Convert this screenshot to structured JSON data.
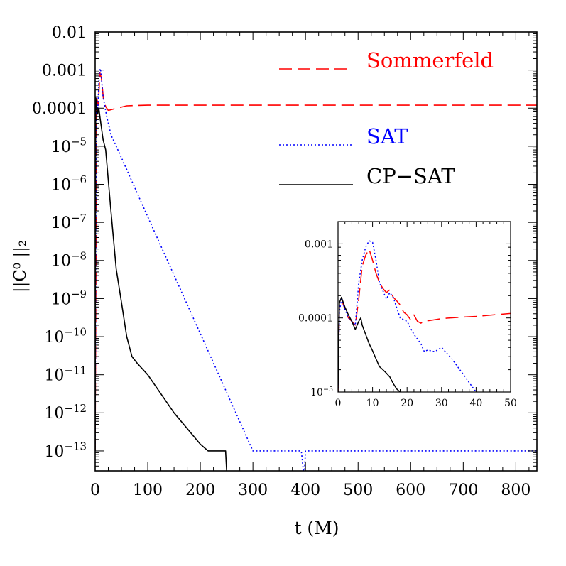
{
  "chart_data": [
    {
      "type": "line",
      "title": "",
      "xlabel": "t (M)",
      "ylabel": "||C⁰ ||₂",
      "xlim": [
        0,
        840
      ],
      "ylim": [
        3e-14,
        0.01
      ],
      "yscale": "log",
      "grid": false,
      "legend_placement": "top-right",
      "x_ticks": [
        0,
        100,
        200,
        300,
        400,
        500,
        600,
        700,
        800
      ],
      "y_ticks": [
        {
          "value": 0.01,
          "label": "0.01"
        },
        {
          "value": 0.001,
          "label": "0.001"
        },
        {
          "value": 0.0001,
          "label": "0.0001"
        },
        {
          "value": 1e-05,
          "label": "10",
          "exp": "−5"
        },
        {
          "value": 1e-06,
          "label": "10",
          "exp": "−6"
        },
        {
          "value": 1e-07,
          "label": "10",
          "exp": "−7"
        },
        {
          "value": 1e-08,
          "label": "10",
          "exp": "−8"
        },
        {
          "value": 1e-09,
          "label": "10",
          "exp": "−9"
        },
        {
          "value": 1e-10,
          "label": "10",
          "exp": "−10"
        },
        {
          "value": 1e-11,
          "label": "10",
          "exp": "−11"
        },
        {
          "value": 1e-12,
          "label": "10",
          "exp": "−12"
        },
        {
          "value": 1e-13,
          "label": "10",
          "exp": "−13"
        }
      ],
      "series": [
        {
          "name": "Sommerfeld",
          "color": "#ff0000",
          "style": "dashed",
          "x": [
            0,
            3,
            6,
            9,
            12,
            16,
            20,
            25,
            35,
            60,
            100,
            200,
            300,
            400,
            500,
            600,
            700,
            800,
            840
          ],
          "y": [
            1e-13,
            0.00018,
            0.00012,
            0.00085,
            0.0006,
            0.00016,
            0.00011,
            8.7e-05,
            9.5e-05,
            0.000115,
            0.00012,
            0.00012,
            0.00012,
            0.00012,
            0.00012,
            0.00012,
            0.00012,
            0.00012,
            0.00012
          ]
        },
        {
          "name": "SAT",
          "color": "#0000ff",
          "style": "dotted",
          "x": [
            0,
            2,
            5,
            8,
            10,
            12,
            15,
            18,
            22,
            26,
            30,
            40,
            50,
            100,
            200,
            300,
            380,
            392,
            396,
            398,
            400,
            402,
            500,
            600,
            700,
            800,
            840
          ],
          "y": [
            1e-13,
            0.00015,
            0.0001,
            0.0009,
            0.0011,
            0.0006,
            0.0002,
            0.00012,
            6e-05,
            3.5e-05,
            2e-05,
            1e-05,
            5e-06,
            1.4e-07,
            1.2e-10,
            1e-13,
            1e-13,
            1e-13,
            3e-14,
            3e-14,
            1e-13,
            1e-13,
            1e-13,
            1e-13,
            1e-13,
            1e-13,
            1e-13
          ]
        },
        {
          "name": "CP−SAT",
          "color": "#000000",
          "style": "solid",
          "x": [
            0,
            1,
            3,
            5,
            7,
            9,
            12,
            15,
            20,
            30,
            40,
            50,
            60,
            70,
            80,
            100,
            150,
            200,
            215,
            230,
            248,
            250
          ],
          "y": [
            1e-13,
            0.00019,
            0.00011,
            7e-05,
            0.0001,
            6e-05,
            3e-05,
            1.5e-05,
            8e-06,
            2e-07,
            6e-09,
            8e-10,
            1e-10,
            3e-11,
            2e-11,
            1e-11,
            1e-12,
            1.5e-13,
            1e-13,
            1e-13,
            1e-13,
            3e-14
          ]
        }
      ]
    },
    {
      "type": "line",
      "title": "",
      "xlabel": "",
      "ylabel": "",
      "xlim": [
        0,
        50
      ],
      "ylim": [
        1e-05,
        0.002
      ],
      "yscale": "log",
      "grid": false,
      "legend_placement": "",
      "x_ticks": [
        0,
        10,
        20,
        30,
        40,
        50
      ],
      "y_ticks": [
        {
          "value": 0.001,
          "label": "0.001"
        },
        {
          "value": 0.0001,
          "label": "0.0001"
        },
        {
          "value": 1e-05,
          "label": "10",
          "exp": "−5"
        }
      ],
      "series": [
        {
          "name": "Sommerfeld",
          "color": "#ff0000",
          "style": "dashed",
          "x": [
            0,
            0.4,
            1,
            2,
            3,
            4,
            5,
            6,
            7,
            8,
            9,
            10,
            11,
            12,
            13,
            14,
            15,
            16,
            17,
            18,
            19,
            20,
            21,
            22,
            23,
            24,
            25,
            27,
            30,
            35,
            40,
            45,
            50
          ],
          "y": [
            1e-05,
            0.00015,
            0.00018,
            0.00013,
            0.0001,
            9e-05,
            8e-05,
            0.00018,
            0.0005,
            0.0007,
            0.00085,
            0.0006,
            0.0004,
            0.0003,
            0.00025,
            0.00022,
            0.00024,
            0.00019,
            0.00017,
            0.00015,
            0.00012,
            0.00011,
            9.5e-05,
            0.00011,
            9e-05,
            8.5e-05,
            9e-05,
            9.3e-05,
            9.8e-05,
            0.000102,
            0.000105,
            0.00011,
            0.000115
          ]
        },
        {
          "name": "SAT",
          "color": "#0000ff",
          "style": "dotted",
          "x": [
            0,
            0.4,
            1,
            2,
            3,
            4,
            5,
            6,
            7,
            8,
            9,
            10,
            11,
            12,
            14,
            15,
            16,
            18,
            20,
            22,
            24,
            25,
            26,
            28,
            30,
            33,
            36,
            40
          ],
          "y": [
            1e-05,
            0.00012,
            0.00018,
            0.00013,
            0.0001,
            9e-05,
            8e-05,
            0.0003,
            0.0006,
            0.0009,
            0.0011,
            0.00105,
            0.0006,
            0.0003,
            0.00018,
            0.00022,
            0.00019,
            0.0001,
            9e-05,
            6e-05,
            4.5e-05,
            3.5e-05,
            3.7e-05,
            3.5e-05,
            4e-05,
            2.8e-05,
            1.8e-05,
            1e-05
          ]
        },
        {
          "name": "CP−SAT",
          "color": "#000000",
          "style": "solid",
          "x": [
            0,
            0.4,
            1,
            2,
            3,
            4,
            5,
            6,
            6.6,
            7,
            8,
            9,
            10,
            11,
            12,
            13,
            14,
            15,
            16,
            17,
            18
          ],
          "y": [
            1e-05,
            0.00016,
            0.00019,
            0.00014,
            0.00011,
            9e-05,
            7e-05,
            9e-05,
            0.0001,
            8e-05,
            6e-05,
            4.5e-05,
            3.6e-05,
            2.8e-05,
            2.2e-05,
            2e-05,
            1.8e-05,
            1.6e-05,
            1.3e-05,
            1.1e-05,
            1e-05
          ]
        }
      ]
    }
  ]
}
